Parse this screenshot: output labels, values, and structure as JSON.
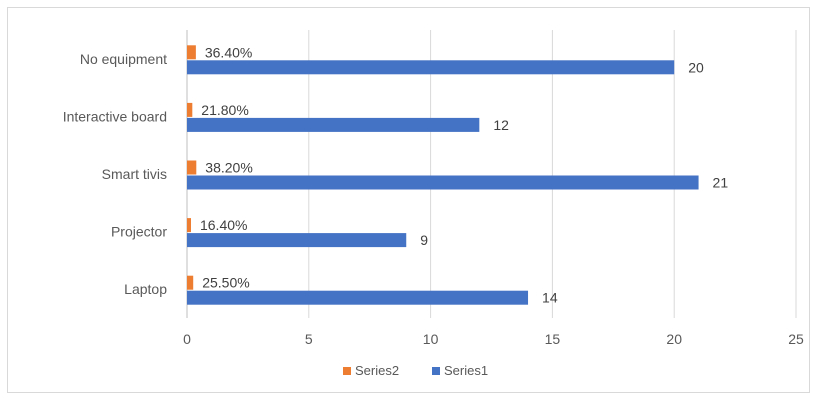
{
  "chart_data": {
    "type": "bar",
    "orientation": "horizontal",
    "categories": [
      "Laptop",
      "Projector",
      "Smart tivis",
      "Interactive board",
      "No equipment"
    ],
    "series": [
      {
        "name": "Series2",
        "color": "#ED7D31",
        "values": [
          0.255,
          0.164,
          0.382,
          0.218,
          0.364
        ],
        "labels": [
          "25.50%",
          "16.40%",
          "38.20%",
          "21.80%",
          "36.40%"
        ]
      },
      {
        "name": "Series1",
        "color": "#4472C4",
        "values": [
          14,
          9,
          21,
          12,
          20
        ],
        "labels": [
          "14",
          "9",
          "21",
          "12",
          "20"
        ]
      }
    ],
    "xlim": [
      0,
      25
    ],
    "xticks": [
      0,
      5,
      10,
      15,
      20,
      25
    ],
    "grid": "vertical",
    "legend": "bottom",
    "title": "",
    "xlabel": "",
    "ylabel": ""
  }
}
